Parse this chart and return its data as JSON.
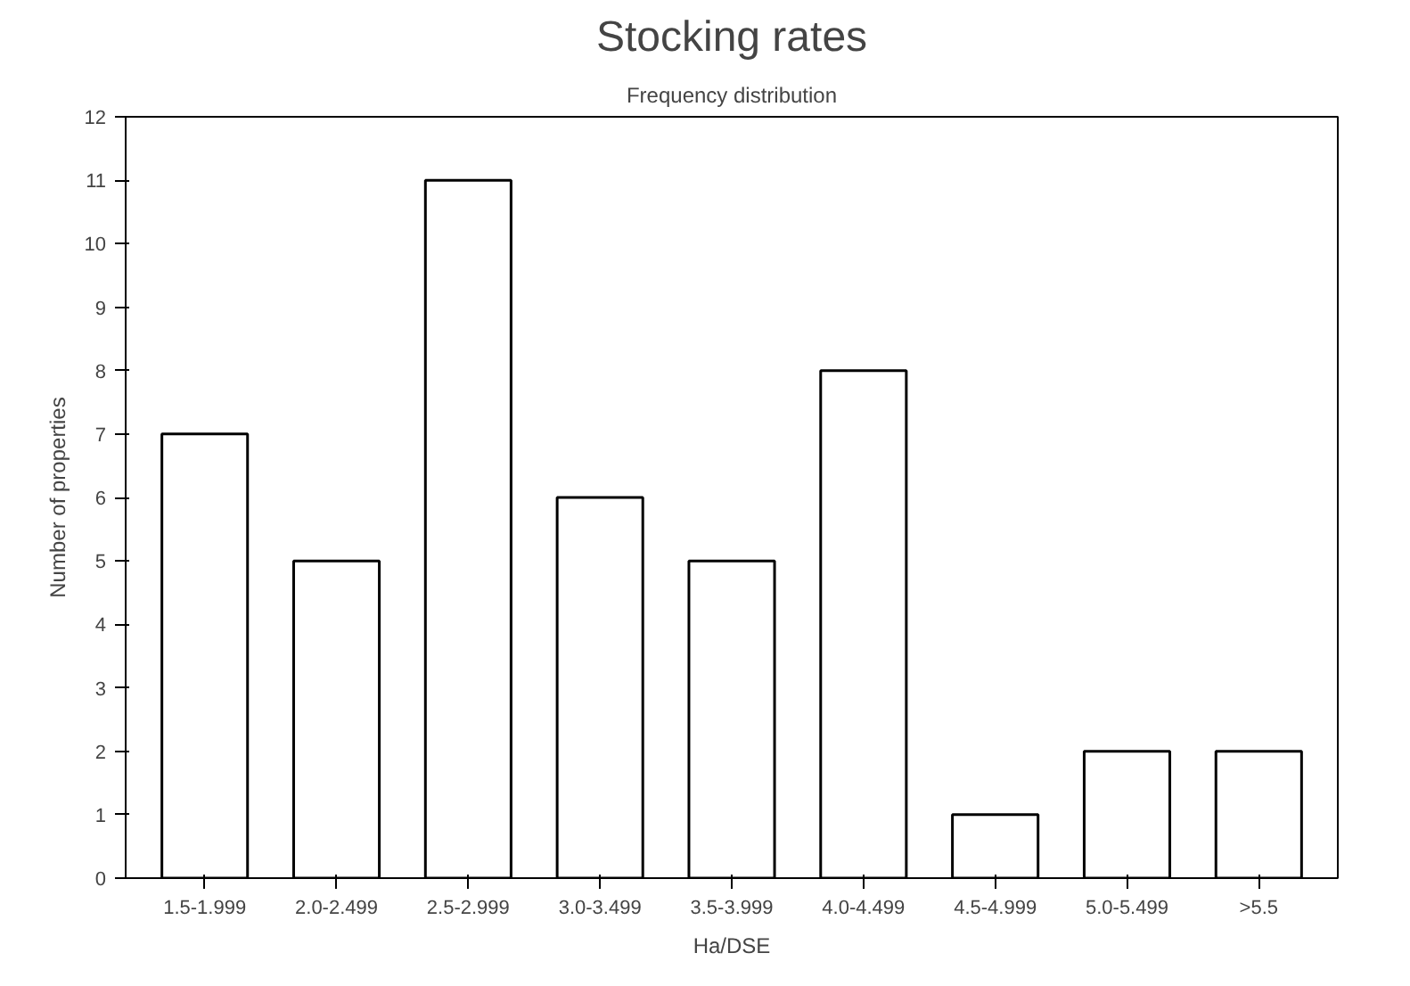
{
  "chart_data": {
    "type": "bar",
    "title": "Stocking rates",
    "subtitle": "Frequency distribution",
    "xlabel": "Ha/DSE",
    "ylabel": "Number of properties",
    "categories": [
      "1.5-1.999",
      "2.0-2.499",
      "2.5-2.999",
      "3.0-3.499",
      "3.5-3.999",
      "4.0-4.499",
      "4.5-4.999",
      "5.0-5.499",
      ">5.5"
    ],
    "values": [
      7,
      5,
      11,
      6,
      5,
      8,
      1,
      2,
      2
    ],
    "color": "#ffffff",
    "ylim": [
      0,
      12
    ],
    "yticks": [
      0,
      1,
      2,
      3,
      4,
      5,
      6,
      7,
      8,
      9,
      10,
      11,
      12
    ],
    "grid": false
  }
}
